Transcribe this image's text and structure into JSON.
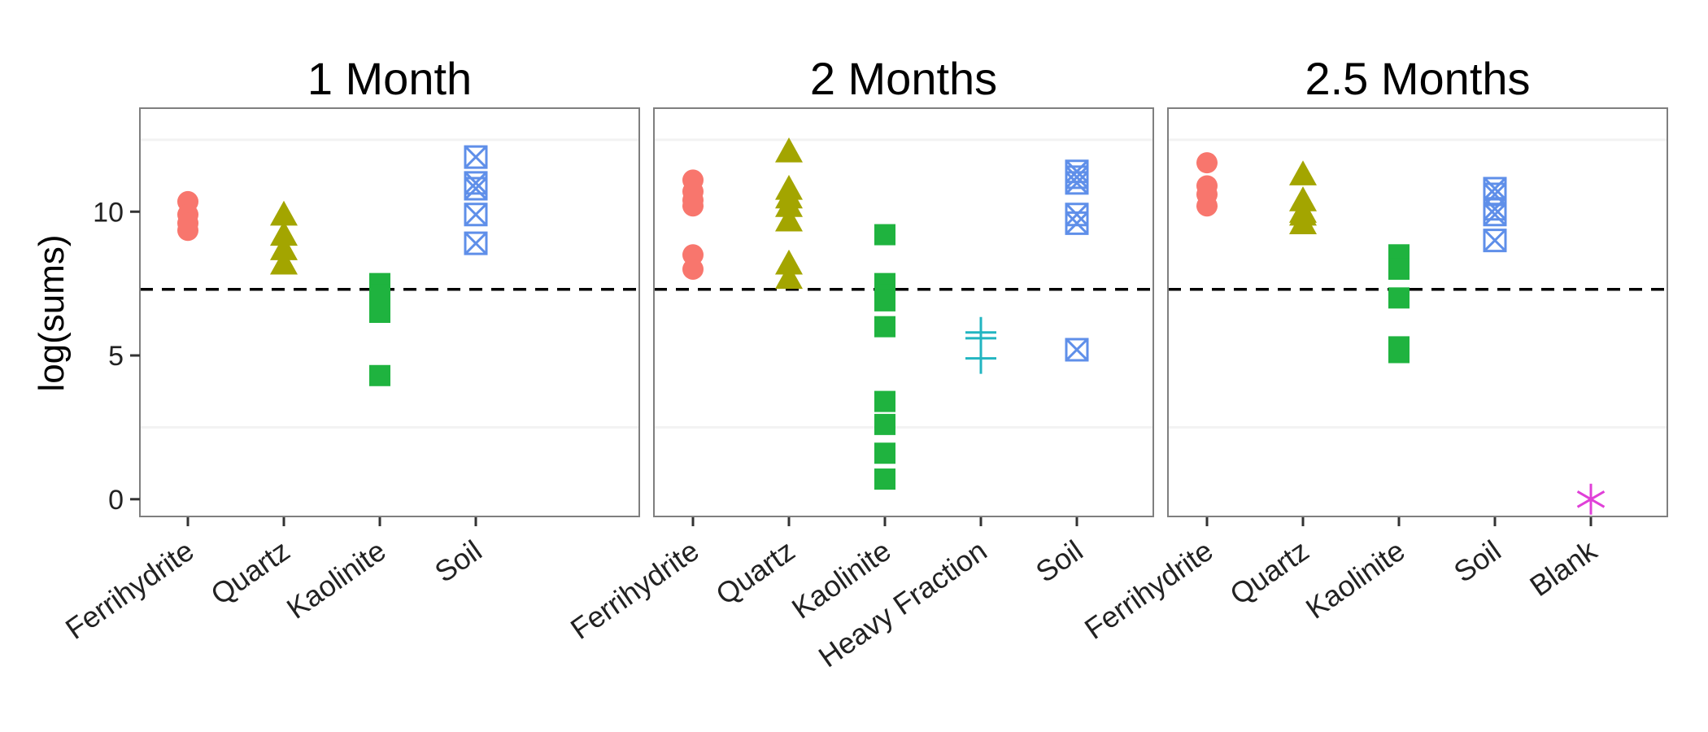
{
  "chart_data": {
    "type": "scatter",
    "ylabel": "log(sums)",
    "yticks": [
      0,
      5,
      10
    ],
    "ylim": [
      -0.6,
      13.6
    ],
    "minor_grid": [
      2.5,
      12.5
    ],
    "reference_line": 7.3,
    "colors": {
      "Ferrihydrite": "#F8766D",
      "Quartz": "#A3A500",
      "Kaolinite": "#1FB33F",
      "Heavy Fraction": "#22B5C1",
      "Soil": "#5F8FE9",
      "Blank": "#E040D8"
    },
    "shapes": {
      "Ferrihydrite": "circle",
      "Quartz": "triangle",
      "Kaolinite": "square",
      "Heavy Fraction": "plus",
      "Soil": "boxed-x",
      "Blank": "asterisk"
    },
    "facets": [
      {
        "title": "1 Month",
        "categories": [
          "Ferrihydrite",
          "Quartz",
          "Kaolinite",
          "Soil"
        ],
        "points": {
          "Ferrihydrite": [
            10.35,
            9.9,
            9.6,
            9.35
          ],
          "Quartz": [
            9.9,
            9.2,
            8.7,
            8.2
          ],
          "Kaolinite": [
            7.5,
            7.1,
            6.5,
            4.3
          ],
          "Soil": [
            11.9,
            11.0,
            10.8,
            9.9,
            8.9
          ]
        }
      },
      {
        "title": "2 Months",
        "categories": [
          "Ferrihydrite",
          "Quartz",
          "Kaolinite",
          "Heavy Fraction",
          "Soil"
        ],
        "points": {
          "Ferrihydrite": [
            11.1,
            10.7,
            10.4,
            10.2,
            8.5,
            8.0
          ],
          "Quartz": [
            12.1,
            10.8,
            10.5,
            10.2,
            9.7,
            8.2,
            7.7
          ],
          "Kaolinite": [
            9.2,
            7.5,
            7.1,
            6.9,
            6.0,
            3.4,
            2.6,
            1.6,
            0.7
          ],
          "Heavy Fraction": [
            5.8,
            5.6,
            4.9
          ],
          "Soil": [
            11.4,
            11.2,
            11.0,
            9.9,
            9.6,
            5.2
          ]
        }
      },
      {
        "title": "2.5 Months",
        "categories": [
          "Ferrihydrite",
          "Quartz",
          "Kaolinite",
          "Soil",
          "Blank"
        ],
        "points": {
          "Ferrihydrite": [
            11.7,
            10.9,
            10.6,
            10.2
          ],
          "Quartz": [
            11.3,
            10.4,
            10.0,
            9.9,
            9.6
          ],
          "Kaolinite": [
            8.5,
            8.0,
            7.0,
            5.3,
            5.1
          ],
          "Soil": [
            10.8,
            10.6,
            10.1,
            9.9,
            9.0
          ],
          "Blank": [
            0.0
          ]
        }
      }
    ]
  }
}
